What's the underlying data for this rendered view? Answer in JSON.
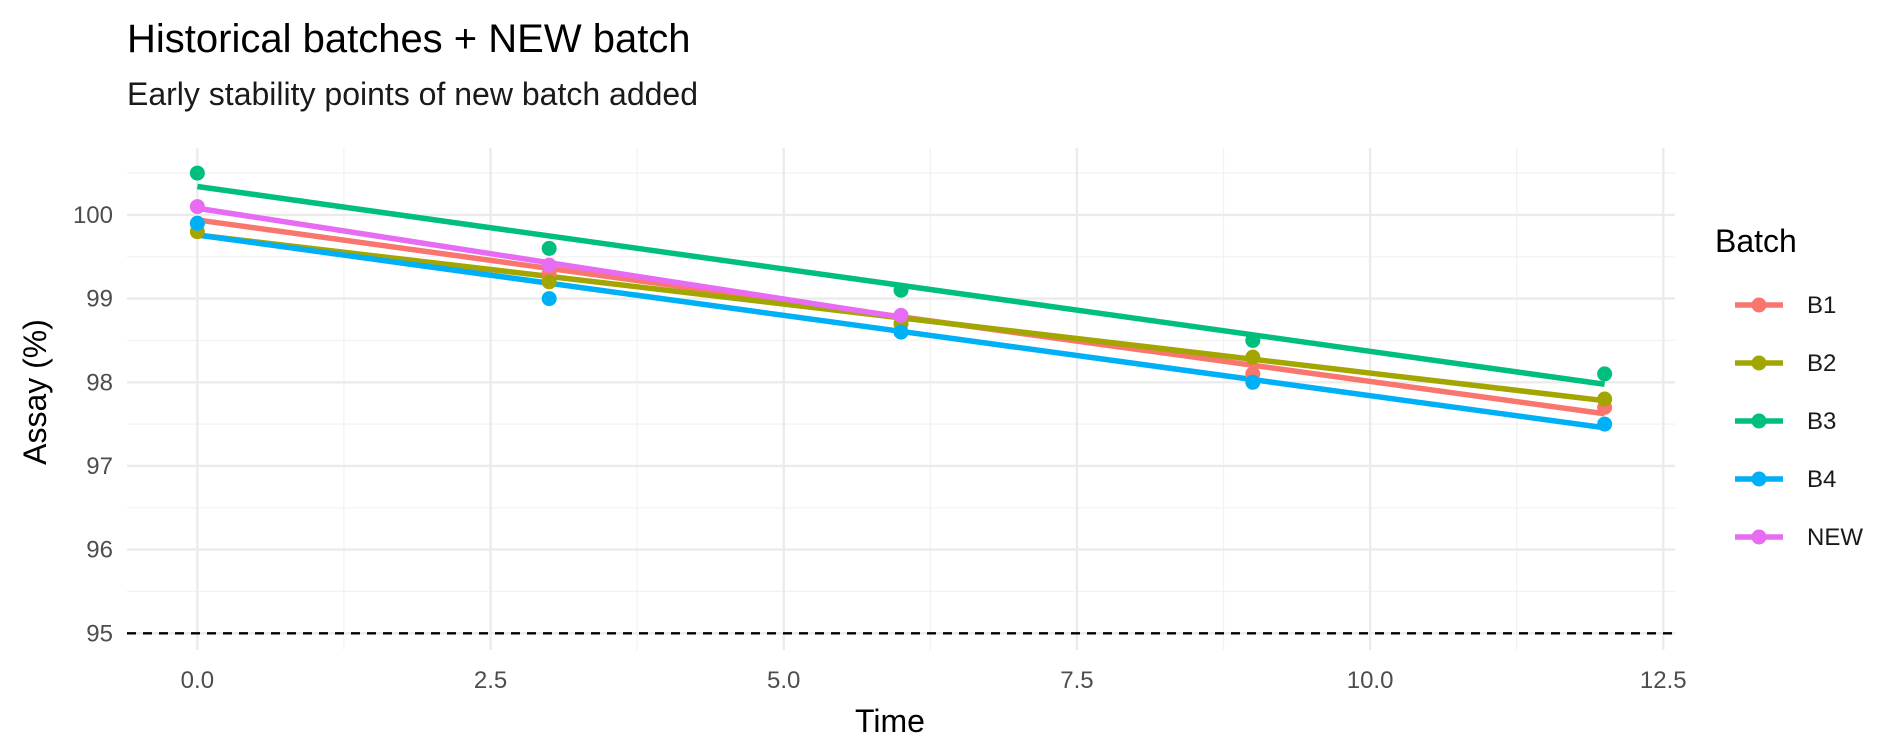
{
  "chart_data": {
    "type": "scatter",
    "title": "Historical batches + NEW batch",
    "subtitle": "Early stability points of new batch added",
    "xlabel": "Time",
    "ylabel": "Assay (%)",
    "xlim": [
      -0.6,
      12.6
    ],
    "ylim": [
      94.8,
      100.8
    ],
    "x_ticks": [
      0,
      2.5,
      5,
      7.5,
      10,
      12.5
    ],
    "x_tick_labels": [
      "0.0",
      "2.5",
      "5.0",
      "7.5",
      "10.0",
      "12.5"
    ],
    "y_ticks": [
      95,
      96,
      97,
      98,
      99,
      100
    ],
    "y_tick_labels": [
      "95",
      "96",
      "97",
      "98",
      "99",
      "100"
    ],
    "grid": true,
    "legend_title": "Batch",
    "legend_position": "right",
    "reference_line": {
      "y": 95,
      "style": "dashed",
      "color": "#000000"
    },
    "series": [
      {
        "name": "B1",
        "color": "#F8766D",
        "x": [
          0,
          3,
          6,
          9,
          12
        ],
        "y": [
          99.9,
          99.3,
          98.7,
          98.1,
          97.7
        ],
        "fit": {
          "intercept": 99.94,
          "slope": -0.193,
          "x_range": [
            0,
            12
          ]
        }
      },
      {
        "name": "B2",
        "color": "#A3A500",
        "x": [
          0,
          3,
          6,
          9,
          12
        ],
        "y": [
          99.8,
          99.2,
          98.7,
          98.3,
          97.8
        ],
        "fit": {
          "intercept": 99.76,
          "slope": -0.165,
          "x_range": [
            0,
            12
          ]
        }
      },
      {
        "name": "B3",
        "color": "#00BF7D",
        "x": [
          0,
          3,
          6,
          9,
          12
        ],
        "y": [
          100.5,
          99.6,
          99.1,
          98.5,
          98.1
        ],
        "fit": {
          "intercept": 100.34,
          "slope": -0.197,
          "x_range": [
            0,
            12
          ]
        }
      },
      {
        "name": "B4",
        "color": "#00B0F6",
        "x": [
          0,
          3,
          6,
          9,
          12
        ],
        "y": [
          99.9,
          99.0,
          98.6,
          98.0,
          97.5
        ],
        "fit": {
          "intercept": 99.76,
          "slope": -0.192,
          "x_range": [
            0,
            12
          ]
        }
      },
      {
        "name": "NEW",
        "color": "#E76BF3",
        "x": [
          0,
          3,
          6
        ],
        "y": [
          100.1,
          99.4,
          98.8
        ],
        "fit": {
          "intercept": 100.08,
          "slope": -0.217,
          "x_range": [
            0,
            6
          ]
        }
      }
    ]
  }
}
